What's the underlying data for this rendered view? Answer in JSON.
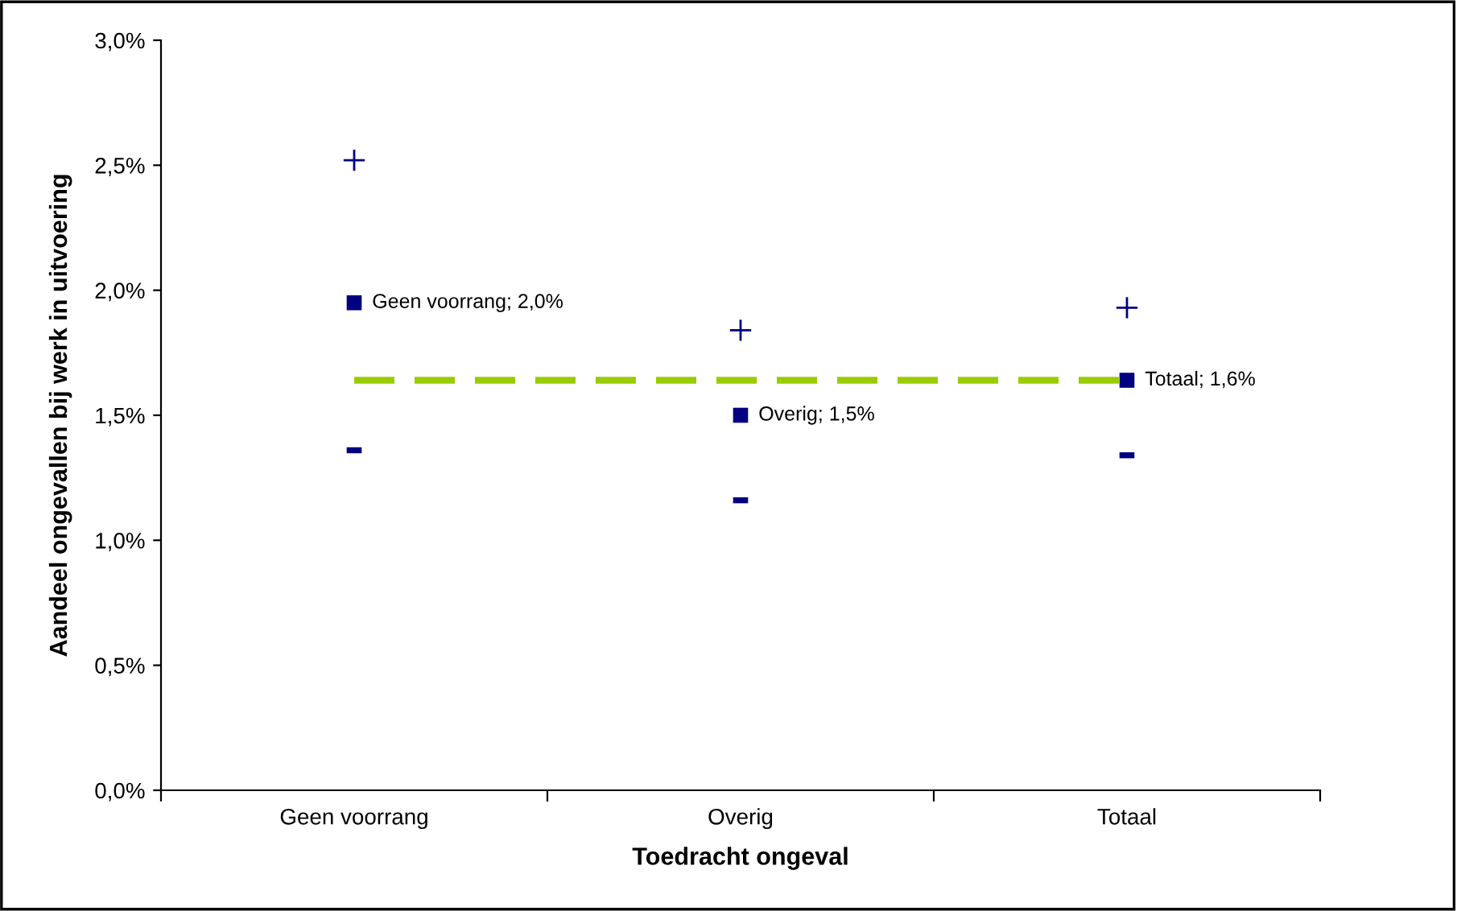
{
  "chart_data": {
    "type": "scatter",
    "xlabel": "Toedracht ongeval",
    "ylabel": "Aandeel ongevallen bij werk in uitvoering",
    "categories": [
      "Geen voorrang",
      "Overig",
      "Totaal"
    ],
    "series": [
      {
        "type": "line",
        "color": "#99cc00",
        "values": [
          1.64,
          1.64,
          1.64
        ],
        "line_style": "dashed",
        "marker": "none"
      },
      {
        "type": "scatter",
        "color": "#000080",
        "values": [
          1.95,
          1.5,
          1.64
        ],
        "marker": "square",
        "value_labels": [
          "Geen voorrang; 2,0%",
          "Overig; 1,5%",
          "Totaal; 1,6%"
        ]
      },
      {
        "type": "scatter",
        "color": "#000080",
        "values": [
          2.52,
          1.84,
          1.93
        ],
        "marker": "cross"
      },
      {
        "color": "#000080",
        "values": [
          1.36,
          1.16,
          1.34
        ]
      }
    ],
    "ylim": [
      0,
      3
    ],
    "yticks": [
      {
        "value": 0,
        "label": "0,0%"
      },
      {
        "value": 0.5,
        "label": "0,5%"
      },
      {
        "value": 1,
        "label": "1,0%"
      },
      {
        "value": 1.5,
        "label": "1,5%"
      },
      {
        "value": 2,
        "label": "2,0%"
      },
      {
        "value": 2.5,
        "label": "2,5%"
      },
      {
        "value": 3,
        "label": "3,0%"
      }
    ],
    "grid": false
  }
}
